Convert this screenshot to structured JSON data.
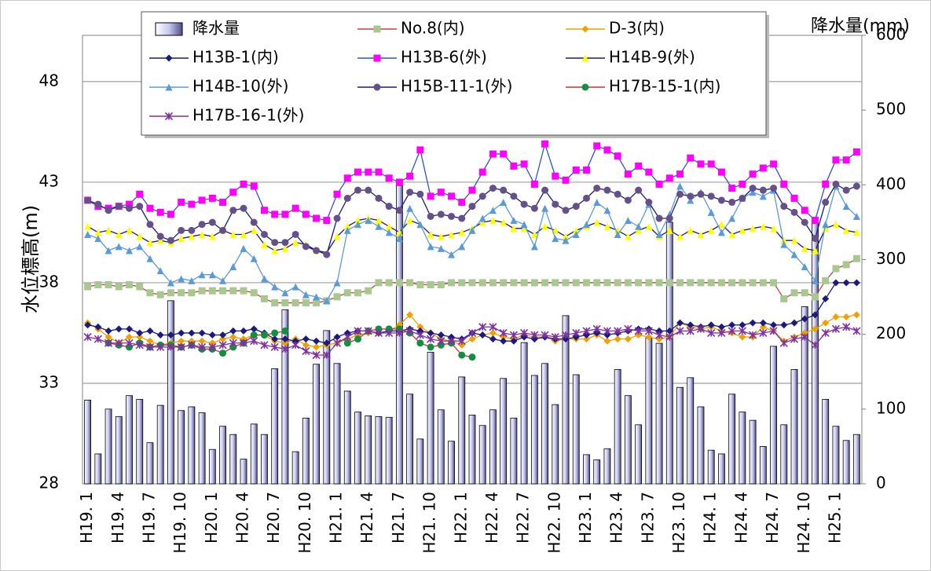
{
  "chart_data": {
    "type": "combo",
    "y_label": "水位標高(m)",
    "y2_label": "降水量(mm)",
    "ylim": [
      28,
      50.3
    ],
    "yticks": [
      28,
      33,
      38,
      43,
      48
    ],
    "y2lim": [
      0,
      600
    ],
    "y2ticks": [
      0,
      100,
      200,
      300,
      400,
      500,
      600
    ],
    "grid": true,
    "legend": "top",
    "categories": [
      "H19. 1",
      null,
      null,
      "H19. 4",
      null,
      null,
      "H19. 7",
      null,
      null,
      "H19. 10",
      null,
      null,
      "H20. 1",
      null,
      null,
      "H20. 4",
      null,
      null,
      "H20. 7",
      null,
      null,
      "H20. 10",
      null,
      null,
      "H21. 1",
      null,
      null,
      "H21. 4",
      null,
      null,
      "H21. 7",
      null,
      null,
      "H21. 10",
      null,
      null,
      "H22. 1",
      null,
      null,
      "H22. 4",
      null,
      null,
      "H22. 7",
      null,
      null,
      "H22. 10",
      null,
      null,
      "H23. 1",
      null,
      null,
      "H23. 4",
      null,
      null,
      "H23. 7",
      null,
      null,
      "H23. 10",
      null,
      null,
      "H24. 1",
      null,
      null,
      "H24. 4",
      null,
      null,
      "H24. 7",
      null,
      null,
      "H24. 10",
      null,
      null,
      "H25. 1",
      null,
      null
    ],
    "series": [
      {
        "name": "降水量",
        "type": "bar",
        "axis": "y2",
        "color": "#c8c8f0",
        "values": [
          112,
          40,
          100,
          90,
          118,
          113,
          55,
          105,
          245,
          98,
          103,
          95,
          46,
          77,
          66,
          33,
          80,
          66,
          154,
          233,
          43,
          88,
          160,
          205,
          161,
          124,
          96,
          91,
          90,
          89,
          399,
          120,
          60,
          176,
          99,
          57,
          143,
          92,
          78,
          99,
          141,
          88,
          189,
          145,
          161,
          106,
          225,
          146,
          39,
          32,
          47,
          153,
          118,
          79,
          195,
          188,
          350,
          129,
          142,
          103,
          45,
          40,
          120,
          96,
          85,
          50,
          184,
          79,
          153,
          237,
          356,
          113,
          77,
          58,
          66
        ]
      },
      {
        "name": "No.8(内)",
        "type": "line",
        "color": "#c04040",
        "marker_color": "#a8c890",
        "marker": "square",
        "values": [
          37.8,
          37.9,
          37.9,
          37.8,
          37.9,
          37.8,
          37.5,
          37.4,
          37.5,
          37.5,
          37.5,
          37.6,
          37.6,
          37.6,
          37.6,
          37.6,
          37.5,
          37.2,
          37.0,
          37.0,
          37.0,
          37.0,
          37.0,
          37.1,
          37.3,
          37.5,
          37.5,
          37.6,
          38.0,
          38.0,
          38.0,
          38.0,
          37.9,
          37.9,
          37.9,
          38.0,
          38.0,
          38.0,
          38.0,
          38.0,
          38.0,
          38.0,
          38.0,
          38.0,
          38.0,
          38.0,
          38.0,
          38.0,
          38.0,
          38.0,
          38.0,
          38.0,
          38.0,
          38.0,
          38.0,
          38.0,
          38.0,
          38.0,
          38.0,
          38.0,
          38.0,
          38.0,
          38.0,
          38.0,
          38.0,
          38.0,
          38.0,
          37.2,
          37.5,
          37.5,
          37.3,
          38.1,
          38.7,
          38.9,
          39.2
        ]
      },
      {
        "name": "D-3(内)",
        "type": "line",
        "color": "#f0a000",
        "marker_color": "#f0a000",
        "marker": "diamond",
        "values": [
          36.0,
          35.7,
          35.3,
          35.0,
          35.3,
          35.3,
          35.1,
          34.9,
          35.0,
          35.1,
          35.1,
          35.1,
          35.0,
          35.2,
          35.3,
          35.2,
          35.4,
          35.4,
          35.1,
          35.0,
          35.2,
          34.9,
          34.8,
          34.9,
          35.0,
          35.2,
          35.4,
          35.5,
          35.5,
          35.6,
          35.9,
          36.4,
          35.8,
          35.5,
          35.2,
          35.1,
          34.9,
          35.2,
          35.4,
          35.5,
          35.3,
          35.2,
          35.4,
          35.3,
          35.3,
          35.1,
          35.2,
          35.2,
          35.2,
          35.4,
          35.1,
          35.2,
          35.2,
          35.4,
          35.3,
          35.2,
          35.3,
          36.0,
          35.8,
          35.7,
          35.8,
          35.6,
          35.5,
          35.3,
          35.3,
          35.8,
          35.6,
          35.1,
          35.3,
          35.5,
          35.7,
          36.0,
          36.3,
          36.3,
          36.4
        ]
      },
      {
        "name": "H13B-1(内)",
        "type": "line",
        "color": "#1a1a80",
        "marker_color": "#1a1a80",
        "marker": "diamond",
        "values": [
          35.9,
          35.8,
          35.6,
          35.7,
          35.7,
          35.5,
          35.6,
          35.4,
          35.4,
          35.5,
          35.5,
          35.5,
          35.4,
          35.4,
          35.6,
          35.6,
          35.7,
          35.5,
          35.2,
          35.2,
          35.1,
          35.2,
          35.1,
          35.0,
          35.3,
          35.5,
          35.6,
          35.6,
          35.5,
          35.6,
          35.6,
          35.7,
          35.6,
          35.5,
          35.4,
          35.3,
          35.2,
          35.5,
          35.4,
          35.2,
          35.1,
          35.1,
          35.3,
          35.2,
          35.3,
          35.2,
          35.2,
          35.3,
          35.4,
          35.5,
          35.4,
          35.5,
          35.6,
          35.7,
          35.7,
          35.6,
          35.6,
          36.0,
          35.9,
          35.8,
          35.9,
          35.8,
          35.9,
          35.9,
          36.0,
          36.0,
          35.9,
          35.9,
          36.0,
          36.2,
          36.4,
          37.2,
          38.0,
          38.0,
          38.0
        ]
      },
      {
        "name": "H13B-6(外)",
        "type": "line",
        "color": "#3050d0",
        "marker_color": "#ff00ff",
        "marker": "square",
        "values": [
          42.1,
          41.8,
          41.7,
          41.8,
          41.9,
          42.4,
          41.7,
          41.5,
          41.4,
          42.0,
          41.9,
          42.1,
          42.2,
          42.0,
          42.5,
          42.9,
          42.8,
          41.6,
          41.4,
          41.4,
          41.7,
          41.4,
          41.2,
          41.1,
          42.4,
          43.2,
          43.5,
          43.5,
          43.5,
          43.2,
          43.0,
          43.3,
          44.6,
          42.3,
          42.5,
          42.3,
          42.0,
          42.6,
          43.5,
          44.4,
          44.4,
          43.8,
          43.9,
          42.9,
          44.9,
          43.3,
          43.1,
          43.6,
          43.6,
          44.8,
          44.6,
          44.3,
          43.4,
          43.8,
          43.5,
          42.9,
          43.2,
          43.4,
          44.2,
          43.9,
          43.9,
          43.5,
          42.7,
          42.9,
          43.4,
          43.7,
          43.9,
          42.9,
          42.2,
          41.6,
          41.1,
          42.9,
          44.1,
          44.1,
          44.5
        ]
      },
      {
        "name": "H14B-9(外)",
        "type": "line",
        "color": "#1a1a80",
        "marker_color": "#ffff00",
        "marker": "triangle",
        "values": [
          40.8,
          40.5,
          40.6,
          40.4,
          40.6,
          40.3,
          40.0,
          40.1,
          40.0,
          40.2,
          40.3,
          40.4,
          40.3,
          40.6,
          40.4,
          40.4,
          40.6,
          39.9,
          39.6,
          39.7,
          40.0,
          39.9,
          39.6,
          39.5,
          40.3,
          40.8,
          41.1,
          41.2,
          41.1,
          40.8,
          40.5,
          41.1,
          40.9,
          40.4,
          40.3,
          40.4,
          40.5,
          40.7,
          41.0,
          41.1,
          41.0,
          40.7,
          40.7,
          40.4,
          40.8,
          40.6,
          40.3,
          40.6,
          40.8,
          41.0,
          40.8,
          40.6,
          40.3,
          40.6,
          40.8,
          40.3,
          40.6,
          40.3,
          40.6,
          40.4,
          40.6,
          40.9,
          40.4,
          40.6,
          40.7,
          40.8,
          40.7,
          40.1,
          40.1,
          39.7,
          39.6,
          40.7,
          40.9,
          40.6,
          40.5
        ]
      },
      {
        "name": "H14B-10(外)",
        "type": "line",
        "color": "#5a9ad8",
        "marker_color": "#5a9ad8",
        "marker": "triangle",
        "values": [
          40.4,
          40.2,
          39.6,
          39.8,
          39.6,
          39.8,
          39.2,
          38.6,
          38.0,
          38.2,
          38.1,
          38.4,
          38.4,
          38.1,
          38.8,
          39.7,
          39.2,
          38.2,
          37.8,
          37.5,
          37.8,
          37.4,
          37.3,
          37.1,
          38.0,
          40.6,
          40.9,
          41.1,
          40.8,
          40.5,
          40.2,
          41.7,
          40.9,
          39.8,
          39.7,
          39.4,
          39.8,
          40.6,
          41.2,
          41.6,
          42.0,
          41.1,
          40.9,
          39.8,
          41.7,
          40.2,
          40.1,
          40.4,
          40.9,
          42.0,
          41.6,
          40.4,
          41.1,
          40.8,
          41.9,
          40.4,
          41.4,
          42.8,
          42.1,
          42.5,
          41.5,
          40.5,
          41.2,
          42.2,
          42.5,
          42.3,
          42.6,
          39.9,
          39.4,
          38.8,
          38.1,
          40.9,
          42.8,
          41.8,
          41.3
        ]
      },
      {
        "name": "H15B-11-1(外)",
        "type": "line",
        "color": "#1a1a80",
        "marker_color": "#66508a",
        "marker": "circle",
        "values": [
          42.1,
          41.9,
          41.6,
          41.8,
          41.7,
          41.8,
          40.9,
          40.3,
          40.1,
          40.6,
          40.6,
          40.9,
          41.0,
          40.6,
          41.6,
          41.7,
          41.0,
          40.4,
          40.0,
          40.0,
          40.4,
          39.8,
          39.6,
          39.4,
          41.2,
          42.2,
          42.6,
          42.6,
          42.2,
          41.8,
          41.6,
          42.5,
          42.4,
          41.3,
          41.4,
          41.3,
          41.2,
          41.8,
          42.3,
          42.7,
          42.6,
          42.3,
          41.9,
          41.7,
          42.6,
          41.9,
          41.6,
          41.8,
          42.2,
          42.7,
          42.6,
          42.4,
          42.1,
          42.6,
          42.0,
          41.2,
          41.2,
          42.4,
          42.3,
          42.4,
          42.3,
          42.1,
          42.0,
          42.2,
          42.7,
          42.6,
          42.7,
          41.8,
          41.5,
          41.0,
          40.2,
          42.0,
          42.9,
          42.6,
          42.8
        ]
      },
      {
        "name": "H17B-15-1(内)",
        "type": "line",
        "color": "#d03030",
        "marker_color": "#109040",
        "marker": "circle",
        "values": [
          null,
          null,
          35.0,
          34.9,
          34.8,
          35.0,
          34.8,
          34.9,
          34.9,
          34.8,
          34.9,
          34.7,
          34.7,
          34.5,
          34.8,
          35.0,
          35.4,
          35.4,
          35.5,
          35.6,
          null,
          null,
          null,
          null,
          null,
          35.0,
          35.2,
          35.6,
          35.7,
          35.7,
          35.7,
          35.5,
          35.0,
          34.8,
          34.9,
          35.0,
          34.4,
          34.3,
          null,
          null,
          null,
          null,
          null,
          null,
          null,
          null,
          null,
          null,
          null,
          null,
          null,
          null,
          null,
          null,
          null,
          null,
          null,
          null,
          null,
          null,
          null,
          null,
          null,
          null,
          null,
          null,
          null,
          null,
          null,
          null,
          null,
          null,
          null,
          null,
          null
        ]
      },
      {
        "name": "H17B-16-1(外)",
        "type": "line",
        "color": "#8030a0",
        "marker_color": "#8030a0",
        "marker": "x",
        "values": [
          35.3,
          35.2,
          35.0,
          35.0,
          35.0,
          34.9,
          34.8,
          34.8,
          34.8,
          34.8,
          34.9,
          34.8,
          34.8,
          34.9,
          35.0,
          35.0,
          35.1,
          34.9,
          34.8,
          34.7,
          34.9,
          34.6,
          34.4,
          34.4,
          35.0,
          35.3,
          35.6,
          35.6,
          35.5,
          35.5,
          35.5,
          35.6,
          35.4,
          35.2,
          35.1,
          35.1,
          35.1,
          35.5,
          35.8,
          35.8,
          35.5,
          35.4,
          35.5,
          35.4,
          35.4,
          35.3,
          35.4,
          35.5,
          35.6,
          35.7,
          35.6,
          35.6,
          35.7,
          35.6,
          35.6,
          35.4,
          35.3,
          35.6,
          35.6,
          35.7,
          35.5,
          35.5,
          35.6,
          35.6,
          35.4,
          35.5,
          35.6,
          35.0,
          35.2,
          35.3,
          34.9,
          35.5,
          35.7,
          35.8,
          35.6
        ]
      }
    ]
  }
}
